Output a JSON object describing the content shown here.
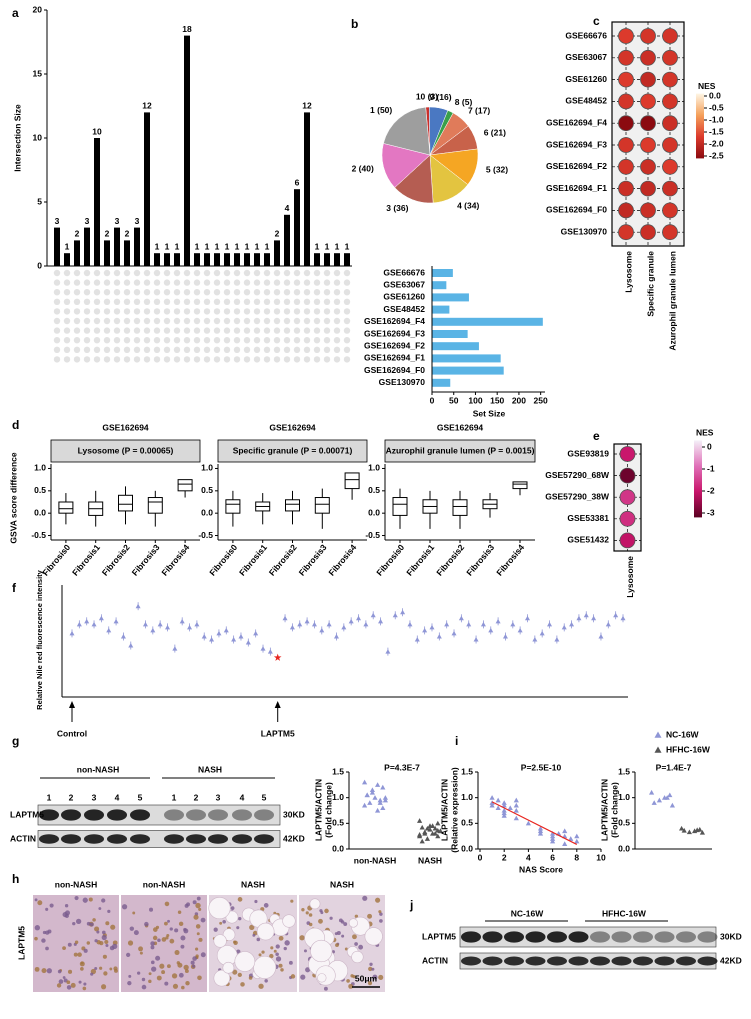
{
  "panel_labels": [
    "a",
    "b",
    "c",
    "d",
    "e",
    "f",
    "g",
    "h",
    "i",
    "j"
  ],
  "chart_data": [
    {
      "type": "upset",
      "ylabel": "Intersection Size",
      "values": [
        3,
        1,
        2,
        3,
        10,
        2,
        3,
        2,
        3,
        12,
        1,
        1,
        1,
        18,
        1,
        1,
        1,
        1,
        1,
        1,
        1,
        1,
        2,
        4,
        6,
        12,
        1,
        1,
        1,
        1
      ],
      "ylim": [
        0,
        20
      ],
      "yticks": [
        0,
        5,
        10,
        15,
        20
      ],
      "color": "#000000"
    },
    {
      "type": "pie",
      "values": [
        3,
        16,
        5,
        17,
        21,
        32,
        34,
        36,
        40,
        50
      ],
      "value_labels": [
        "10 (3)",
        "9 (16)",
        "8 (5)",
        "7 (17)",
        "6 (21)",
        "5 (32)",
        "4 (34)",
        "3 (36)",
        "2 (40)",
        "1 (50)"
      ],
      "colors": [
        "#c9302c",
        "#4a78c2",
        "#3aa04a",
        "#e07b5a",
        "#c8624a",
        "#f5a623",
        "#e3c440",
        "#b55d52",
        "#e377c2",
        "#9e9e9e"
      ]
    },
    {
      "type": "hbar",
      "categories": [
        "GSE66676",
        "GSE63067",
        "GSE61260",
        "GSE48452",
        "GSE162694_F4",
        "GSE162694_F3",
        "GSE162694_F2",
        "GSE162694_F1",
        "GSE162694_F0",
        "GSE130970"
      ],
      "values": [
        48,
        33,
        85,
        40,
        255,
        82,
        108,
        158,
        165,
        42
      ],
      "xlim": [
        0,
        260
      ],
      "xticks": [
        0,
        50,
        100,
        150,
        200,
        250
      ],
      "xlabel": "Set Size",
      "color": "#5ab4e5"
    },
    {
      "type": "dotmatrix",
      "rows": [
        "GSE66676",
        "GSE63067",
        "GSE61260",
        "GSE48452",
        "GSE162694_F4",
        "GSE162694_F3",
        "GSE162694_F2",
        "GSE162694_F1",
        "GSE162694_F0",
        "GSE130970"
      ],
      "columns": [
        "Lysosome",
        "Specific granule",
        "Azurophil granule lumen"
      ],
      "values": [
        [
          -1.7,
          -1.8,
          -1.8
        ],
        [
          -1.8,
          -1.9,
          -1.8
        ],
        [
          -1.7,
          -2.0,
          -1.8
        ],
        [
          -1.8,
          -1.7,
          -1.8
        ],
        [
          -2.6,
          -2.6,
          -1.9
        ],
        [
          -1.8,
          -1.7,
          -1.8
        ],
        [
          -1.8,
          -1.9,
          -1.7
        ],
        [
          -1.9,
          -2.0,
          -1.9
        ],
        [
          -2.0,
          -1.9,
          -1.8
        ],
        [
          -1.8,
          -1.9,
          -1.8
        ]
      ],
      "colorbar_title": "NES",
      "clim": [
        -2.6,
        0.1
      ],
      "cticks": [
        {
          "value": 0,
          "label": "0.0"
        },
        -0.5,
        {
          "value": -1,
          "label": "-1.0"
        },
        -1.5,
        {
          "value": -2,
          "label": "-2.0"
        },
        -2.5
      ],
      "colorscale": [
        "#8b0a10",
        "#dc3a2c",
        "#f5a05a",
        "#fef6e4"
      ]
    },
    {
      "type": "box",
      "title": "GSE162694",
      "strip": "Lysosome (P = 0.00065)",
      "ylabel": "GSVA score difference",
      "categories": [
        "Fibrosis0",
        "Fibrosis1",
        "Fibrosis2",
        "Fibrosis3",
        "Fibrosis4"
      ],
      "boxes": [
        {
          "min": -0.25,
          "q1": 0.0,
          "median": 0.1,
          "q3": 0.25,
          "max": 0.45
        },
        {
          "min": -0.3,
          "q1": -0.05,
          "median": 0.1,
          "q3": 0.25,
          "max": 0.5
        },
        {
          "min": -0.25,
          "q1": 0.05,
          "median": 0.2,
          "q3": 0.4,
          "max": 0.6
        },
        {
          "min": -0.3,
          "q1": 0.0,
          "median": 0.25,
          "q3": 0.35,
          "max": 0.5
        },
        {
          "min": 0.35,
          "q1": 0.5,
          "median": 0.65,
          "q3": 0.75,
          "max": 0.75
        }
      ],
      "ylim": [
        -0.6,
        1.1
      ],
      "yticks": [
        -0.5,
        {
          "value": 0,
          "label": "0.0"
        },
        0.5,
        {
          "value": 1,
          "label": "1.0"
        }
      ]
    },
    {
      "type": "box",
      "title": "GSE162694",
      "strip": "Specific granule (P = 0.00071)",
      "categories": [
        "Fibrosis0",
        "Fibrosis1",
        "Fibrosis2",
        "Fibrosis3",
        "Fibrosis4"
      ],
      "boxes": [
        {
          "min": -0.3,
          "q1": 0.0,
          "median": 0.2,
          "q3": 0.3,
          "max": 0.5
        },
        {
          "min": -0.25,
          "q1": 0.05,
          "median": 0.15,
          "q3": 0.25,
          "max": 0.45
        },
        {
          "min": -0.25,
          "q1": 0.05,
          "median": 0.2,
          "q3": 0.3,
          "max": 0.5
        },
        {
          "min": -0.35,
          "q1": 0.0,
          "median": 0.2,
          "q3": 0.35,
          "max": 0.55
        },
        {
          "min": 0.3,
          "q1": 0.55,
          "median": 0.75,
          "q3": 0.9,
          "max": 0.9
        }
      ],
      "ylim": [
        -0.6,
        1.1
      ],
      "yticks": [
        -0.5,
        {
          "value": 0,
          "label": "0.0"
        },
        0.5,
        {
          "value": 1,
          "label": "1.0"
        }
      ]
    },
    {
      "type": "box",
      "title": "GSE162694",
      "strip": "Azurophil granule lumen (P = 0.0015)",
      "categories": [
        "Fibrosis0",
        "Fibrosis1",
        "Fibrosis2",
        "Fibrosis3",
        "Fibrosis4"
      ],
      "boxes": [
        {
          "min": -0.35,
          "q1": -0.05,
          "median": 0.2,
          "q3": 0.35,
          "max": 0.55
        },
        {
          "min": -0.35,
          "q1": 0.0,
          "median": 0.15,
          "q3": 0.3,
          "max": 0.5
        },
        {
          "min": -0.35,
          "q1": -0.05,
          "median": 0.15,
          "q3": 0.3,
          "max": 0.5
        },
        {
          "min": -0.1,
          "q1": 0.1,
          "median": 0.2,
          "q3": 0.3,
          "max": 0.45
        },
        {
          "min": 0.4,
          "q1": 0.55,
          "median": 0.65,
          "q3": 0.7,
          "max": 0.7
        }
      ],
      "ylim": [
        -0.6,
        1.1
      ],
      "yticks": [
        -0.5,
        {
          "value": 0,
          "label": "0.0"
        },
        0.5,
        {
          "value": 1,
          "label": "1.0"
        }
      ]
    },
    {
      "type": "dotmatrix",
      "rows": [
        "GSE93819",
        "GSE57290_68W",
        "GSE57290_38W",
        "GSE53381",
        "GSE51432"
      ],
      "columns": [
        "Lysosome"
      ],
      "values": [
        [
          -2.0
        ],
        [
          -3.0
        ],
        [
          -1.6
        ],
        [
          -1.7
        ],
        [
          -2.1
        ]
      ],
      "colorbar_title": "NES",
      "clim": [
        -3.2,
        0.3
      ],
      "cticks": [
        0,
        -1,
        -2,
        -3
      ],
      "colorscale": [
        "#5a0020",
        "#c8146a",
        "#e070b8",
        "#f4f0f8"
      ]
    },
    {
      "type": "strip",
      "ylabel": "Relative Nile red fluorescence intensity",
      "values": [
        1.05,
        1.2,
        1.25,
        1.2,
        1.3,
        1.1,
        1.25,
        1.0,
        0.85,
        1.5,
        1.2,
        1.1,
        1.2,
        1.15,
        0.8,
        1.25,
        1.15,
        1.2,
        1.0,
        0.95,
        1.05,
        1.1,
        0.95,
        1.0,
        0.9,
        1.05,
        0.8,
        0.75,
        0.65,
        1.3,
        1.15,
        1.2,
        1.25,
        1.2,
        1.1,
        1.2,
        1.0,
        1.15,
        1.25,
        1.3,
        1.2,
        1.35,
        1.25,
        0.75,
        1.35,
        1.4,
        1.2,
        0.95,
        1.1,
        1.15,
        1.0,
        1.2,
        1.05,
        1.3,
        1.2,
        0.95,
        1.2,
        1.1,
        1.25,
        1.0,
        1.2,
        1.1,
        1.3,
        0.95,
        1.05,
        1.2,
        0.95,
        1.15,
        1.2,
        1.3,
        1.35,
        1.3,
        1.0,
        1.2,
        1.35,
        1.3
      ],
      "ylim": [
        0,
        1.85
      ],
      "color": "#8f96d6",
      "annotations": [
        {
          "text": "Control",
          "index": 0
        },
        {
          "text": "LAPTM5",
          "index": 28,
          "color": "#e8251f"
        }
      ]
    },
    {
      "type": "group_scatter",
      "title": "P=4.3E-7",
      "ylabel": [
        "LAPTM5/ACTIN",
        "(Fold change)"
      ],
      "categories": [
        "non-NASH",
        "NASH"
      ],
      "values": [
        [
          1.3,
          1.2,
          1.25,
          1.1,
          1.05,
          1.0,
          0.95,
          1.0,
          0.9,
          0.85,
          0.8,
          0.75,
          1.15,
          1.05,
          0.95,
          0.9
        ],
        [
          0.55,
          0.5,
          0.45,
          0.4,
          0.42,
          0.35,
          0.3,
          0.38,
          0.33,
          0.28,
          0.25,
          0.3,
          0.2,
          0.15,
          0.35,
          0.4,
          0.45,
          0.3,
          0.25,
          0.36
        ]
      ],
      "colors": [
        "#8f96d6",
        "#555555"
      ],
      "ylim": [
        0,
        1.5
      ],
      "yticks": [
        {
          "value": 0,
          "label": "0.0"
        },
        0.5,
        {
          "value": 1,
          "label": "1.0"
        },
        1.5
      ]
    },
    {
      "type": "scatter",
      "title": "P=2.5E-10",
      "xlabel": "NAS Score",
      "ylabel": [
        "LAPTM5/ACTIN",
        "(Relative expression)"
      ],
      "x": [
        1,
        1,
        1,
        1.5,
        1.5,
        2,
        2,
        2,
        2,
        2,
        2.5,
        3,
        3,
        3,
        3,
        4,
        5,
        5,
        5,
        6,
        6,
        6,
        6,
        6.5,
        7,
        7,
        7,
        7.5,
        8,
        8
      ],
      "values": [
        1.0,
        0.9,
        0.85,
        0.95,
        0.8,
        0.85,
        0.75,
        0.9,
        0.7,
        0.65,
        0.8,
        0.95,
        0.85,
        0.75,
        0.6,
        0.5,
        0.35,
        0.3,
        0.4,
        0.25,
        0.2,
        0.3,
        0.15,
        0.3,
        0.1,
        0.25,
        0.35,
        0.2,
        0.25,
        0.15
      ],
      "xlim": [
        0,
        10
      ],
      "xticks": [
        0,
        2,
        4,
        6,
        8,
        10
      ],
      "ylim": [
        0,
        1.5
      ],
      "yticks": [
        {
          "value": 0,
          "label": "0.0"
        },
        0.5,
        {
          "value": 1,
          "label": "1.0"
        },
        1.5
      ],
      "color": "#8f96d6",
      "line_color": "#e8251f"
    },
    {
      "type": "group_scatter",
      "title": "P=1.4E-7",
      "ylabel": [
        "LAPTM5/ACTIN",
        "(Fold change)"
      ],
      "series": [
        {
          "name": "NC-16W",
          "color": "#8f96d6",
          "values": [
            1.1,
            1.05,
            1.0,
            0.95,
            0.9,
            0.85,
            1.0
          ]
        },
        {
          "name": "HFHC-16W",
          "color": "#555555",
          "values": [
            0.4,
            0.38,
            0.35,
            0.33,
            0.36,
            0.32,
            0.37
          ]
        }
      ],
      "ylim": [
        0,
        1.5
      ],
      "yticks": [
        {
          "value": 0,
          "label": "0.0"
        },
        0.5,
        {
          "value": 1,
          "label": "1.0"
        },
        1.5
      ]
    }
  ],
  "blot_g": {
    "groups": [
      "non-NASH",
      "NASH"
    ],
    "lanes": [
      "1",
      "2",
      "3",
      "4",
      "5",
      "1",
      "2",
      "3",
      "4",
      "5"
    ],
    "rows": [
      "LAPTM5",
      "ACTIN"
    ],
    "sizes": [
      "30KD",
      "42KD"
    ]
  },
  "histology_h": {
    "labels": [
      "non-NASH",
      "non-NASH",
      "NASH",
      "NASH"
    ],
    "stain": "LAPTM5",
    "scale_bar": "50μm"
  },
  "blot_j": {
    "groups": [
      "NC-16W",
      "HFHC-16W"
    ],
    "rows": [
      "LAPTM5",
      "ACTIN"
    ],
    "sizes": [
      "30KD",
      "42KD"
    ]
  }
}
